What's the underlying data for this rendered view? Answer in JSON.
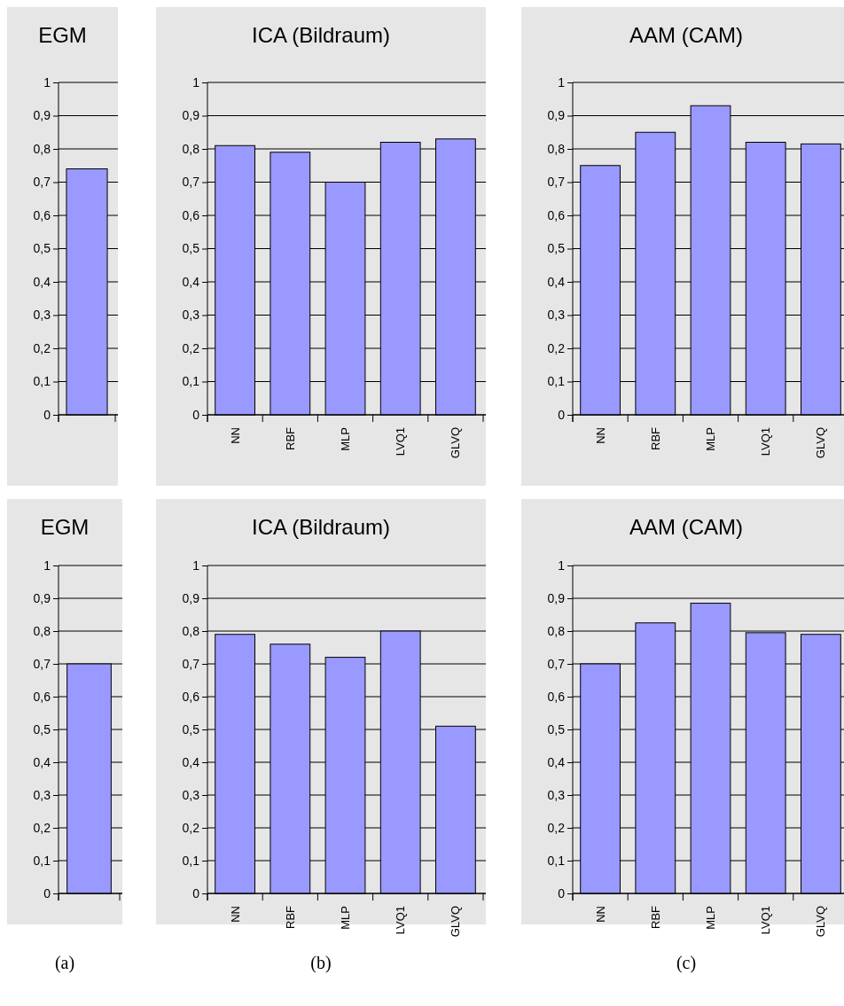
{
  "chart_data": [
    {
      "type": "bar",
      "title": "EGM",
      "categories": [
        null
      ],
      "values": [
        0.74
      ],
      "color": "#9999ff",
      "ylim": [
        0,
        1
      ],
      "yticks": [
        {
          "value": 0,
          "label": "0"
        },
        {
          "value": 0.1,
          "label": "0,1"
        },
        {
          "value": 0.2,
          "label": "0,2"
        },
        {
          "value": 0.3,
          "label": "0,3"
        },
        {
          "value": 0.4,
          "label": "0,4"
        },
        {
          "value": 0.5,
          "label": "0,5"
        },
        {
          "value": 0.6,
          "label": "0,6"
        },
        {
          "value": 0.7,
          "label": "0,7"
        },
        {
          "value": 0.8,
          "label": "0,8"
        },
        {
          "value": 0.9,
          "label": "0,9"
        },
        {
          "value": 1,
          "label": "1"
        }
      ],
      "grid": "y"
    },
    {
      "type": "bar",
      "title": "ICA (Bildraum)",
      "categories": [
        "NN",
        "RBF",
        "MLP",
        "LVQ1",
        "GLVQ"
      ],
      "values": [
        0.81,
        0.79,
        0.7,
        0.82,
        0.83
      ],
      "color": "#9999ff",
      "ylim": [
        0,
        1
      ],
      "yticks": [
        {
          "value": 0,
          "label": "0"
        },
        {
          "value": 0.1,
          "label": "0,1"
        },
        {
          "value": 0.2,
          "label": "0,2"
        },
        {
          "value": 0.3,
          "label": "0,3"
        },
        {
          "value": 0.4,
          "label": "0,4"
        },
        {
          "value": 0.5,
          "label": "0,5"
        },
        {
          "value": 0.6,
          "label": "0,6"
        },
        {
          "value": 0.7,
          "label": "0,7"
        },
        {
          "value": 0.8,
          "label": "0,8"
        },
        {
          "value": 0.9,
          "label": "0,9"
        },
        {
          "value": 1,
          "label": "1"
        }
      ],
      "grid": "y"
    },
    {
      "type": "bar",
      "title": "AAM (CAM)",
      "categories": [
        "NN",
        "RBF",
        "MLP",
        "LVQ1",
        "GLVQ"
      ],
      "values": [
        0.75,
        0.85,
        0.93,
        0.82,
        0.815
      ],
      "color": "#9999ff",
      "ylim": [
        0,
        1
      ],
      "yticks": [
        {
          "value": 0,
          "label": "0"
        },
        {
          "value": 0.1,
          "label": "0,1"
        },
        {
          "value": 0.2,
          "label": "0,2"
        },
        {
          "value": 0.3,
          "label": "0,3"
        },
        {
          "value": 0.4,
          "label": "0,4"
        },
        {
          "value": 0.5,
          "label": "0,5"
        },
        {
          "value": 0.6,
          "label": "0,6"
        },
        {
          "value": 0.7,
          "label": "0,7"
        },
        {
          "value": 0.8,
          "label": "0,8"
        },
        {
          "value": 0.9,
          "label": "0,9"
        },
        {
          "value": 1,
          "label": "1"
        }
      ],
      "grid": "y"
    },
    {
      "type": "bar",
      "title": "EGM",
      "categories": [
        null
      ],
      "values": [
        0.7
      ],
      "color": "#9999ff",
      "ylim": [
        0,
        1
      ],
      "yticks": [
        {
          "value": 0,
          "label": "0"
        },
        {
          "value": 0.1,
          "label": "0,1"
        },
        {
          "value": 0.2,
          "label": "0,2"
        },
        {
          "value": 0.3,
          "label": "0,3"
        },
        {
          "value": 0.4,
          "label": "0,4"
        },
        {
          "value": 0.5,
          "label": "0,5"
        },
        {
          "value": 0.6,
          "label": "0,6"
        },
        {
          "value": 0.7,
          "label": "0,7"
        },
        {
          "value": 0.8,
          "label": "0,8"
        },
        {
          "value": 0.9,
          "label": "0,9"
        },
        {
          "value": 1,
          "label": "1"
        }
      ],
      "grid": "y",
      "annotations": [
        "(a)"
      ]
    },
    {
      "type": "bar",
      "title": "ICA (Bildraum)",
      "categories": [
        "NN",
        "RBF",
        "MLP",
        "LVQ1",
        "GLVQ"
      ],
      "values": [
        0.79,
        0.76,
        0.72,
        0.8,
        0.51
      ],
      "color": "#9999ff",
      "ylim": [
        0,
        1
      ],
      "yticks": [
        {
          "value": 0,
          "label": "0"
        },
        {
          "value": 0.1,
          "label": "0,1"
        },
        {
          "value": 0.2,
          "label": "0,2"
        },
        {
          "value": 0.3,
          "label": "0,3"
        },
        {
          "value": 0.4,
          "label": "0,4"
        },
        {
          "value": 0.5,
          "label": "0,5"
        },
        {
          "value": 0.6,
          "label": "0,6"
        },
        {
          "value": 0.7,
          "label": "0,7"
        },
        {
          "value": 0.8,
          "label": "0,8"
        },
        {
          "value": 0.9,
          "label": "0,9"
        },
        {
          "value": 1,
          "label": "1"
        }
      ],
      "grid": "y",
      "annotations": [
        "(b)"
      ]
    },
    {
      "type": "bar",
      "title": "AAM (CAM)",
      "categories": [
        "NN",
        "RBF",
        "MLP",
        "LVQ1",
        "GLVQ"
      ],
      "values": [
        0.7,
        0.825,
        0.885,
        0.795,
        0.79
      ],
      "color": "#9999ff",
      "ylim": [
        0,
        1
      ],
      "yticks": [
        {
          "value": 0,
          "label": "0"
        },
        {
          "value": 0.1,
          "label": "0,1"
        },
        {
          "value": 0.2,
          "label": "0,2"
        },
        {
          "value": 0.3,
          "label": "0,3"
        },
        {
          "value": 0.4,
          "label": "0,4"
        },
        {
          "value": 0.5,
          "label": "0,5"
        },
        {
          "value": 0.6,
          "label": "0,6"
        },
        {
          "value": 0.7,
          "label": "0,7"
        },
        {
          "value": 0.8,
          "label": "0,8"
        },
        {
          "value": 0.9,
          "label": "0,9"
        },
        {
          "value": 1,
          "label": "1"
        }
      ],
      "grid": "y",
      "annotations": [
        "(c)"
      ]
    }
  ]
}
